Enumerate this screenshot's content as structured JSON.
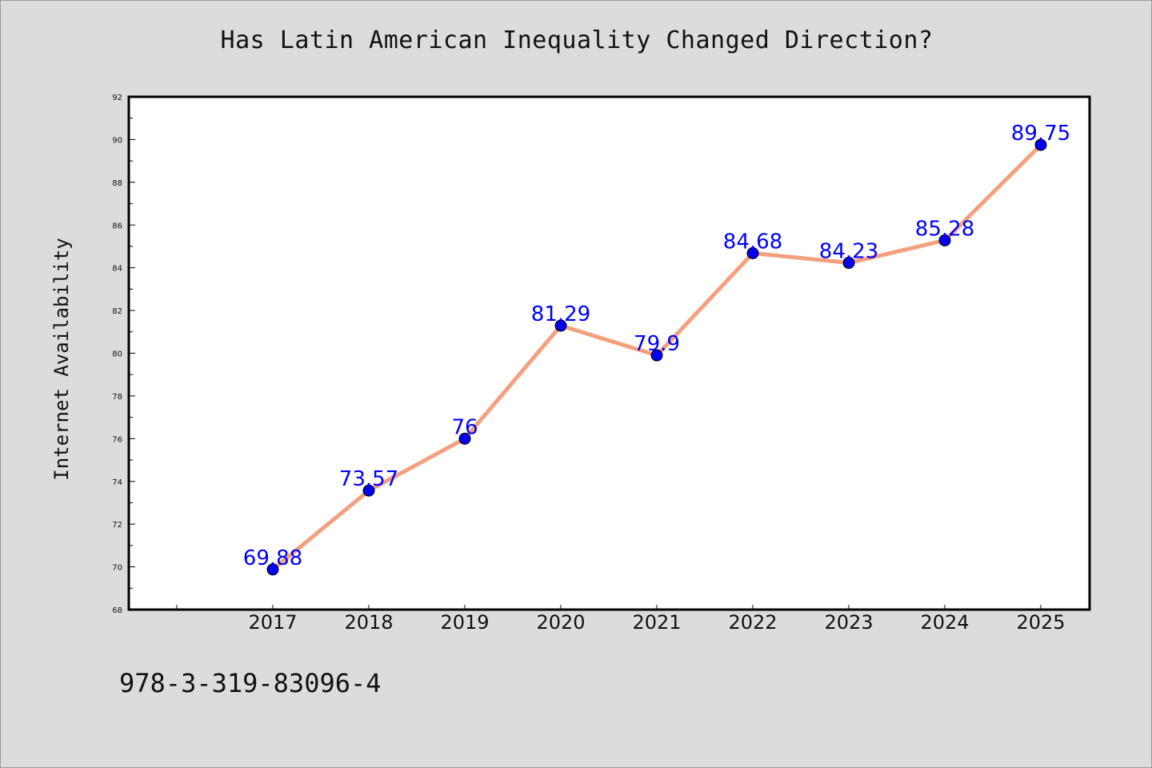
{
  "title": "Has Latin American Inequality Changed Direction?",
  "ylabel": "Internet Availability",
  "footer_text": "978-3-319-83096-4",
  "chart_data": {
    "type": "line",
    "title": "Has Latin American Inequality Changed Direction?",
    "xlabel": "",
    "ylabel": "Internet Availability",
    "categories": [
      "2017",
      "2018",
      "2019",
      "2020",
      "2021",
      "2022",
      "2023",
      "2024",
      "2025"
    ],
    "values": [
      69.88,
      73.57,
      76,
      81.29,
      79.9,
      84.68,
      84.23,
      85.28,
      89.75
    ],
    "data_labels": [
      "69.88",
      "73.57",
      "76",
      "81.29",
      "79.9",
      "84.68",
      "84.23",
      "85.28",
      "89.75"
    ],
    "ylim": [
      68,
      92
    ],
    "yticks": [
      "68",
      "70",
      "72",
      "74",
      "76",
      "78",
      "80",
      "82",
      "84",
      "86",
      "88",
      "90",
      "92"
    ],
    "grid": false,
    "legend": "none",
    "line_color": "#f4a07e",
    "marker_color": "#0000ee",
    "label_color": "#0000ff"
  }
}
